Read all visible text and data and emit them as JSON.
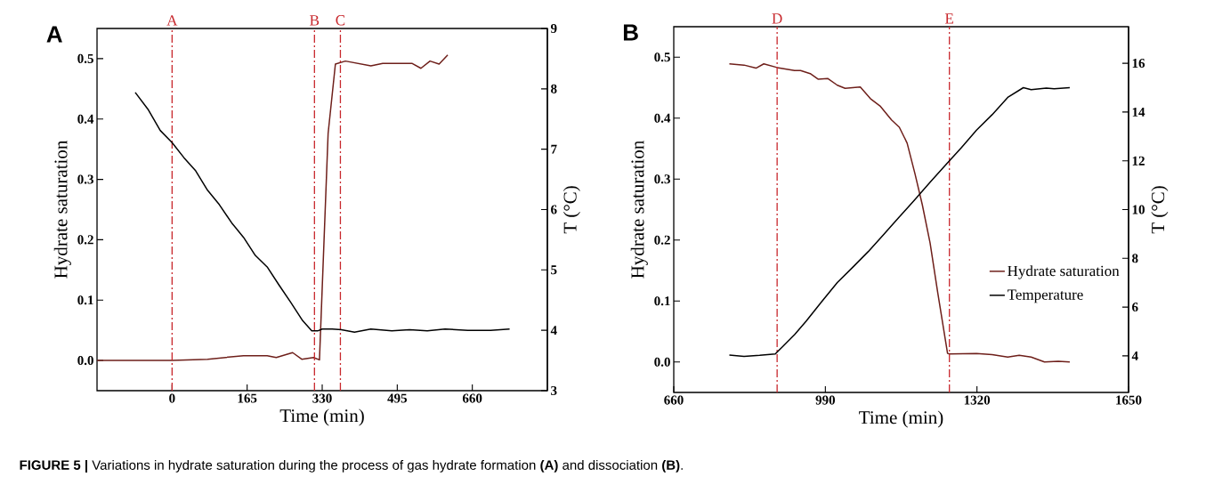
{
  "chart_data": [
    {
      "type": "line",
      "title": "A",
      "xlabel": "Time (min)",
      "ylabel": "Hydrate saturation",
      "y2label": "T (°C)",
      "xlim": [
        -165,
        825
      ],
      "xticks": [
        0,
        165,
        330,
        495,
        660
      ],
      "ylim": [
        -0.05,
        0.55
      ],
      "yticks": [
        {
          "value": 0,
          "label": "0.0"
        },
        0.1,
        0.2,
        0.3,
        0.4,
        0.5
      ],
      "y2lim": [
        3,
        9
      ],
      "y2ticks": [
        3,
        4,
        5,
        6,
        7,
        8,
        9
      ],
      "series": [
        {
          "color": "#6e1f1a",
          "x": [
            -165,
            0,
            78,
            157,
            209,
            229,
            265,
            285,
            311,
            324,
            343,
            359,
            381,
            437,
            463,
            528,
            547,
            567,
            587,
            606
          ],
          "values": [
            0.0,
            0.0,
            0.002,
            0.008,
            0.008,
            0.005,
            0.013,
            0.002,
            0.005,
            0.001,
            0.376,
            0.491,
            0.496,
            0.488,
            0.492,
            0.492,
            0.484,
            0.496,
            0.491,
            0.506
          ]
        },
        {
          "color": "#000000",
          "axis": "y2",
          "x": [
            -81,
            -52,
            -26,
            0,
            26,
            52,
            78,
            104,
            131,
            157,
            183,
            209,
            235,
            261,
            287,
            307,
            320,
            330,
            352,
            372,
            401,
            437,
            483,
            522,
            561,
            600,
            650,
            700,
            742
          ],
          "values": [
            7.94,
            7.65,
            7.31,
            7.11,
            6.86,
            6.64,
            6.32,
            6.08,
            5.78,
            5.54,
            5.24,
            5.05,
            4.75,
            4.46,
            4.16,
            3.99,
            3.99,
            4.02,
            4.02,
            4.01,
            3.97,
            4.02,
            3.99,
            4.01,
            3.99,
            4.02,
            4.0,
            4.0,
            4.02
          ]
        }
      ],
      "ref_lines": [
        {
          "axis": "x",
          "value": 0,
          "label": "A",
          "color": "#c8282d",
          "line_style": "dashdot"
        },
        {
          "axis": "x",
          "value": 313,
          "label": "B",
          "color": "#c8282d",
          "line_style": "dashdot"
        },
        {
          "axis": "x",
          "value": 370,
          "label": "C",
          "color": "#c8282d",
          "line_style": "dashdot"
        }
      ],
      "annotations": [
        "**FIGURE 5 |** Variations in hydrate saturation during the process of gas hydrate formation **(A)** and dissociation **(B)**."
      ]
    },
    {
      "type": "line",
      "title": "B",
      "xlabel": "Time (min)",
      "ylabel": "Hydrate saturation",
      "y2label": "T (°C)",
      "xlim": [
        660,
        1650
      ],
      "xticks": [
        660,
        990,
        1320,
        1650
      ],
      "ylim": [
        -0.05,
        0.55
      ],
      "yticks": [
        {
          "value": 0,
          "label": "0.0"
        },
        0.1,
        0.2,
        0.3,
        0.4,
        0.5
      ],
      "y2lim": [
        2.5,
        17.5
      ],
      "y2ticks": [
        4,
        6,
        8,
        10,
        12,
        14,
        16
      ],
      "legend": "bottom right",
      "series": [
        {
          "name": "Hydrate saturation",
          "color": "#6e1f1a",
          "x": [
            781,
            813,
            839,
            856,
            885,
            923,
            936,
            957,
            974,
            995,
            1016,
            1033,
            1066,
            1088,
            1109,
            1134,
            1151,
            1168,
            1185,
            1201,
            1218,
            1235,
            1256,
            1260,
            1319,
            1353,
            1387,
            1412,
            1438,
            1467,
            1497,
            1522
          ],
          "values": [
            0.489,
            0.487,
            0.482,
            0.489,
            0.483,
            0.478,
            0.478,
            0.473,
            0.464,
            0.465,
            0.454,
            0.449,
            0.451,
            0.432,
            0.42,
            0.397,
            0.385,
            0.359,
            0.309,
            0.258,
            0.195,
            0.112,
            0.014,
            0.013,
            0.014,
            0.012,
            0.008,
            0.011,
            0.008,
            0.0,
            0.001,
            0.0
          ]
        },
        {
          "name": "Temperature",
          "color": "#000000",
          "axis": "y2",
          "x": [
            781,
            813,
            847,
            881,
            898,
            923,
            948,
            982,
            1016,
            1050,
            1083,
            1117,
            1151,
            1185,
            1218,
            1252,
            1286,
            1319,
            1353,
            1387,
            1421,
            1438,
            1471,
            1488,
            1522
          ],
          "values": [
            4.03,
            3.98,
            4.02,
            4.08,
            4.4,
            4.87,
            5.42,
            6.22,
            7.01,
            7.64,
            8.27,
            8.98,
            9.7,
            10.41,
            11.12,
            11.83,
            12.54,
            13.26,
            13.89,
            14.6,
            15.0,
            14.92,
            14.98,
            14.95,
            15.0
          ]
        }
      ],
      "ref_lines": [
        {
          "axis": "x",
          "value": 885,
          "label": "D",
          "color": "#c8282d",
          "line_style": "dashdot"
        },
        {
          "axis": "x",
          "value": 1260,
          "label": "E",
          "color": "#c8282d",
          "line_style": "dashdot"
        }
      ]
    }
  ]
}
